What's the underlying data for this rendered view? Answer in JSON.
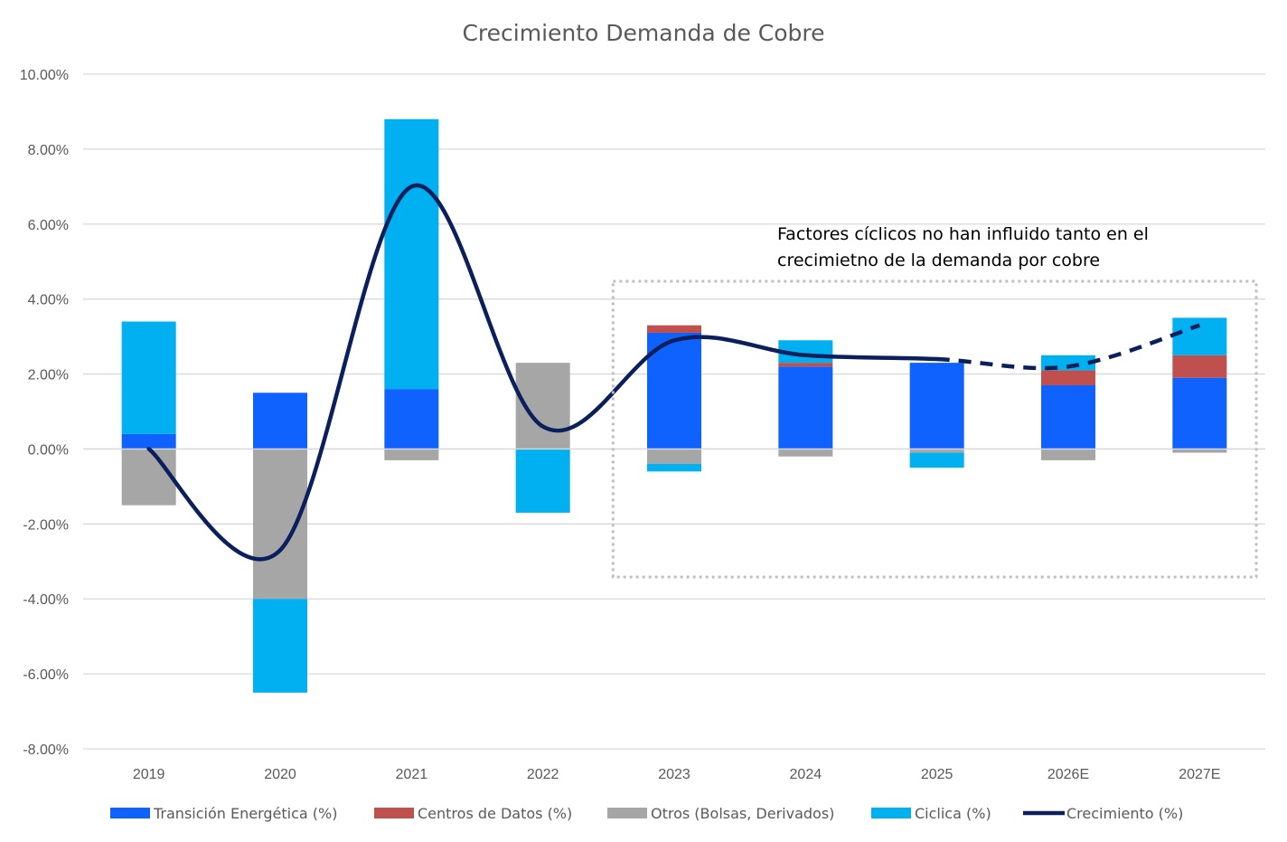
{
  "chart_data": {
    "type": "bar",
    "stacked": true,
    "title": "Crecimiento Demanda de Cobre",
    "xlabel": "",
    "ylabel": "",
    "ylim": [
      -0.08,
      0.1
    ],
    "yticks": [
      0.1,
      0.08,
      0.06,
      0.04,
      0.02,
      0.0,
      -0.02,
      -0.04,
      -0.06,
      -0.08
    ],
    "ytick_labels": [
      "10.00%",
      "8.00%",
      "6.00%",
      "4.00%",
      "2.00%",
      "0.00%",
      "-2.00%",
      "-4.00%",
      "-6.00%",
      "-8.00%"
    ],
    "grid": true,
    "legend_position": "bottom",
    "categories": [
      "2019",
      "2020",
      "2021",
      "2022",
      "2023",
      "2024",
      "2025",
      "2026E",
      "2027E"
    ],
    "series": [
      {
        "name": "Transición Energética (%)",
        "kind": "bar",
        "color": "#0F62FE",
        "values": [
          0.004,
          0.015,
          0.016,
          0.0,
          0.031,
          0.022,
          0.023,
          0.017,
          0.019
        ]
      },
      {
        "name": "Centros de Datos (%)",
        "kind": "bar",
        "color": "#C0504D",
        "values": [
          0.0,
          0.0,
          0.0,
          0.0,
          0.002,
          0.001,
          0.0,
          0.004,
          0.006
        ]
      },
      {
        "name": "Otros (Bolsas, Derivados)",
        "kind": "bar",
        "color": "#A6A6A6",
        "values": [
          -0.015,
          -0.04,
          -0.003,
          0.023,
          -0.004,
          -0.002,
          -0.001,
          -0.003,
          -0.001
        ]
      },
      {
        "name": "Ciclica (%)",
        "kind": "bar",
        "color": "#00B0F0",
        "values": [
          0.03,
          -0.025,
          0.072,
          -0.017,
          -0.002,
          0.006,
          -0.004,
          0.004,
          0.01
        ]
      },
      {
        "name": "Crecimiento (%)",
        "kind": "line",
        "color": "#0A1F5C",
        "values": [
          0.0,
          -0.027,
          0.07,
          0.006,
          0.029,
          0.025,
          0.024,
          0.022,
          0.033
        ],
        "dashed_from_index": 6
      }
    ],
    "annotations": [
      {
        "text": "Factores cíclicos no han influido tanto en el",
        "line": 1
      },
      {
        "text": "crecimietno de la demanda por cobre",
        "line": 2
      }
    ],
    "highlight_box": {
      "from_category": "2023",
      "to_category": "2027E",
      "style": "dotted",
      "color": "#BFBFBF"
    }
  }
}
